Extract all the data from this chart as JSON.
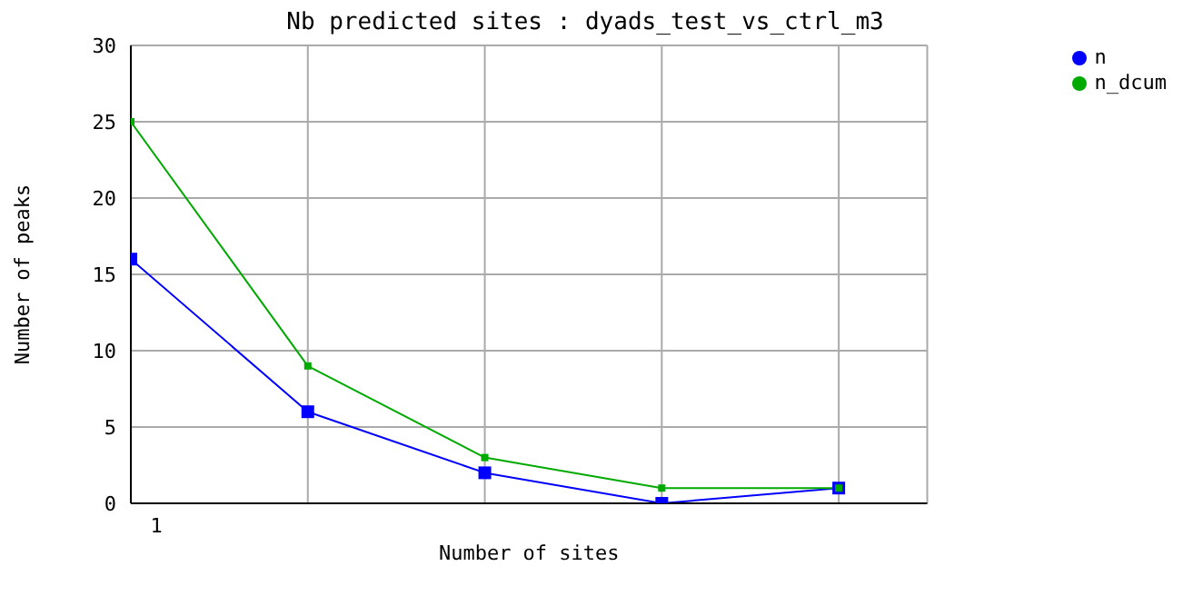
{
  "chart_data": {
    "type": "line",
    "title": "Nb predicted sites : dyads_test_vs_ctrl_m3",
    "xlabel": "Number of sites",
    "ylabel": "Number of peaks",
    "categories": [
      "1",
      null,
      null,
      null,
      null
    ],
    "series": [
      {
        "name": "n",
        "color": "#0000ff",
        "values": [
          16,
          6,
          2,
          0,
          1
        ]
      },
      {
        "name": "n_dcum",
        "color": "#00aa00",
        "values": [
          25,
          9,
          3,
          1,
          1
        ]
      }
    ],
    "ylim": [
      0,
      30
    ],
    "yticks": [
      0,
      5,
      10,
      15,
      20,
      25,
      30
    ],
    "grid": true,
    "legend": "top right",
    "marker": "square",
    "line_style": "solid"
  }
}
